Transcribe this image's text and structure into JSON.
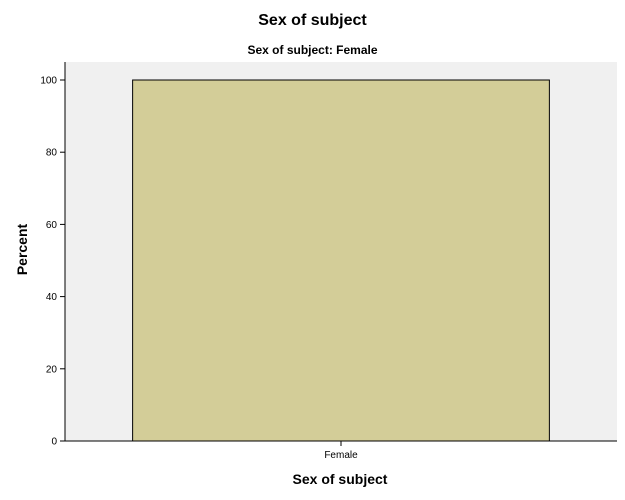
{
  "chart_data": {
    "type": "bar",
    "title": "Sex of subject",
    "subtitle": "Sex of subject: Female",
    "xlabel": "Sex of subject",
    "ylabel": "Percent",
    "categories": [
      "Female"
    ],
    "values": [
      100
    ],
    "ylim": [
      0,
      100
    ],
    "yticks": [
      "0",
      "20",
      "40",
      "60",
      "80",
      "100"
    ],
    "grid": false,
    "legend": "none",
    "colors": {
      "bar_fill": "#d3cd98",
      "bar_stroke": "#000000",
      "plot_background": "#f0f0f0"
    }
  }
}
